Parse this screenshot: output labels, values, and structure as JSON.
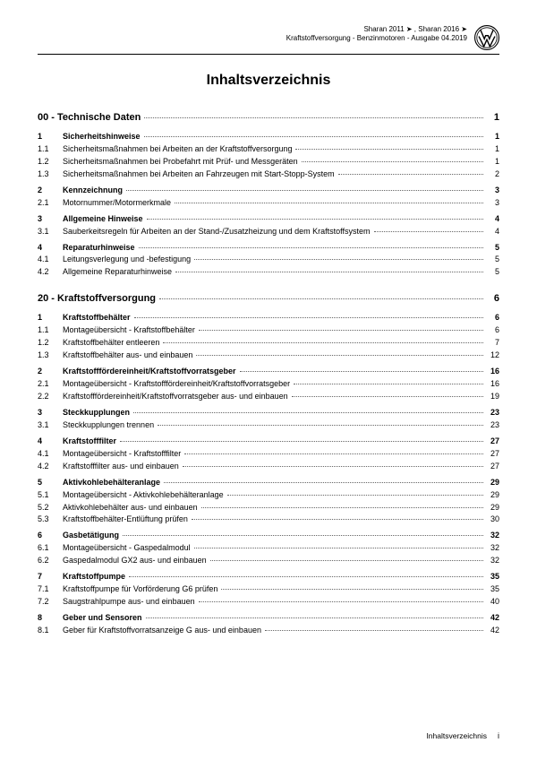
{
  "header": {
    "line1": "Sharan 2011 ➤ , Sharan 2016 ➤",
    "line2": "Kraftstoffversorgung - Benzinmotoren - Ausgabe 04.2019"
  },
  "title": "Inhaltsverzeichnis",
  "chapters": [
    {
      "id": "00",
      "label": "Technische Daten",
      "page": "1",
      "sections": [
        {
          "num": "1",
          "label": "Sicherheitshinweise",
          "page": "1",
          "subs": [
            {
              "num": "1.1",
              "label": "Sicherheitsmaßnahmen bei Arbeiten an der Kraftstoffversorgung",
              "page": "1"
            },
            {
              "num": "1.2",
              "label": "Sicherheitsmaßnahmen bei Probefahrt mit Prüf- und Messgeräten",
              "page": "1"
            },
            {
              "num": "1.3",
              "label": "Sicherheitsmaßnahmen bei Arbeiten an Fahrzeugen mit Start-Stopp-System",
              "page": "2"
            }
          ]
        },
        {
          "num": "2",
          "label": "Kennzeichnung",
          "page": "3",
          "subs": [
            {
              "num": "2.1",
              "label": "Motornummer/Motormerkmale",
              "page": "3"
            }
          ]
        },
        {
          "num": "3",
          "label": "Allgemeine Hinweise",
          "page": "4",
          "subs": [
            {
              "num": "3.1",
              "label": "Sauberkeitsregeln für Arbeiten an der Stand-/Zusatzheizung und dem Kraftstoffsystem",
              "page": "4"
            }
          ]
        },
        {
          "num": "4",
          "label": "Reparaturhinweise",
          "page": "5",
          "subs": [
            {
              "num": "4.1",
              "label": "Leitungsverlegung und -befestigung",
              "page": "5"
            },
            {
              "num": "4.2",
              "label": "Allgemeine Reparaturhinweise",
              "page": "5"
            }
          ]
        }
      ]
    },
    {
      "id": "20",
      "label": "Kraftstoffversorgung",
      "page": "6",
      "sections": [
        {
          "num": "1",
          "label": "Kraftstoffbehälter",
          "page": "6",
          "subs": [
            {
              "num": "1.1",
              "label": "Montageübersicht - Kraftstoffbehälter",
              "page": "6"
            },
            {
              "num": "1.2",
              "label": "Kraftstoffbehälter entleeren",
              "page": "7"
            },
            {
              "num": "1.3",
              "label": "Kraftstoffbehälter aus- und einbauen",
              "page": "12"
            }
          ]
        },
        {
          "num": "2",
          "label": "Kraftstofffördereinheit/Kraftstoffvorratsgeber",
          "page": "16",
          "subs": [
            {
              "num": "2.1",
              "label": "Montageübersicht - Kraftstofffördereinheit/Kraftstoffvorratsgeber",
              "page": "16"
            },
            {
              "num": "2.2",
              "label": "Kraftstofffördereinheit/Kraftstoffvorratsgeber aus- und einbauen",
              "page": "19"
            }
          ]
        },
        {
          "num": "3",
          "label": "Steckkupplungen",
          "page": "23",
          "subs": [
            {
              "num": "3.1",
              "label": "Steckkupplungen trennen",
              "page": "23"
            }
          ]
        },
        {
          "num": "4",
          "label": "Kraftstofffilter",
          "page": "27",
          "subs": [
            {
              "num": "4.1",
              "label": "Montageübersicht - Kraftstofffilter",
              "page": "27"
            },
            {
              "num": "4.2",
              "label": "Kraftstofffilter aus- und einbauen",
              "page": "27"
            }
          ]
        },
        {
          "num": "5",
          "label": "Aktivkohlebehälteranlage",
          "page": "29",
          "subs": [
            {
              "num": "5.1",
              "label": "Montageübersicht - Aktivkohlebehälteranlage",
              "page": "29"
            },
            {
              "num": "5.2",
              "label": "Aktivkohlebehälter aus- und einbauen",
              "page": "29"
            },
            {
              "num": "5.3",
              "label": "Kraftstoffbehälter-Entlüftung prüfen",
              "page": "30"
            }
          ]
        },
        {
          "num": "6",
          "label": "Gasbetätigung",
          "page": "32",
          "subs": [
            {
              "num": "6.1",
              "label": "Montageübersicht - Gaspedalmodul",
              "page": "32"
            },
            {
              "num": "6.2",
              "label": "Gaspedalmodul GX2 aus- und einbauen",
              "page": "32"
            }
          ]
        },
        {
          "num": "7",
          "label": "Kraftstoffpumpe",
          "page": "35",
          "subs": [
            {
              "num": "7.1",
              "label": "Kraftstoffpumpe für Vorförderung G6 prüfen",
              "page": "35"
            },
            {
              "num": "7.2",
              "label": "Saugstrahlpumpe aus- und einbauen",
              "page": "40"
            }
          ]
        },
        {
          "num": "8",
          "label": "Geber und Sensoren",
          "page": "42",
          "subs": [
            {
              "num": "8.1",
              "label": "Geber für Kraftstoffvorratsanzeige G aus- und einbauen",
              "page": "42"
            }
          ]
        }
      ]
    }
  ],
  "footer": {
    "label": "Inhaltsverzeichnis",
    "page": "i"
  },
  "colors": {
    "text": "#000000",
    "dots": "#666666",
    "background": "#ffffff",
    "watermark": "rgba(0,0,0,0.05)"
  }
}
